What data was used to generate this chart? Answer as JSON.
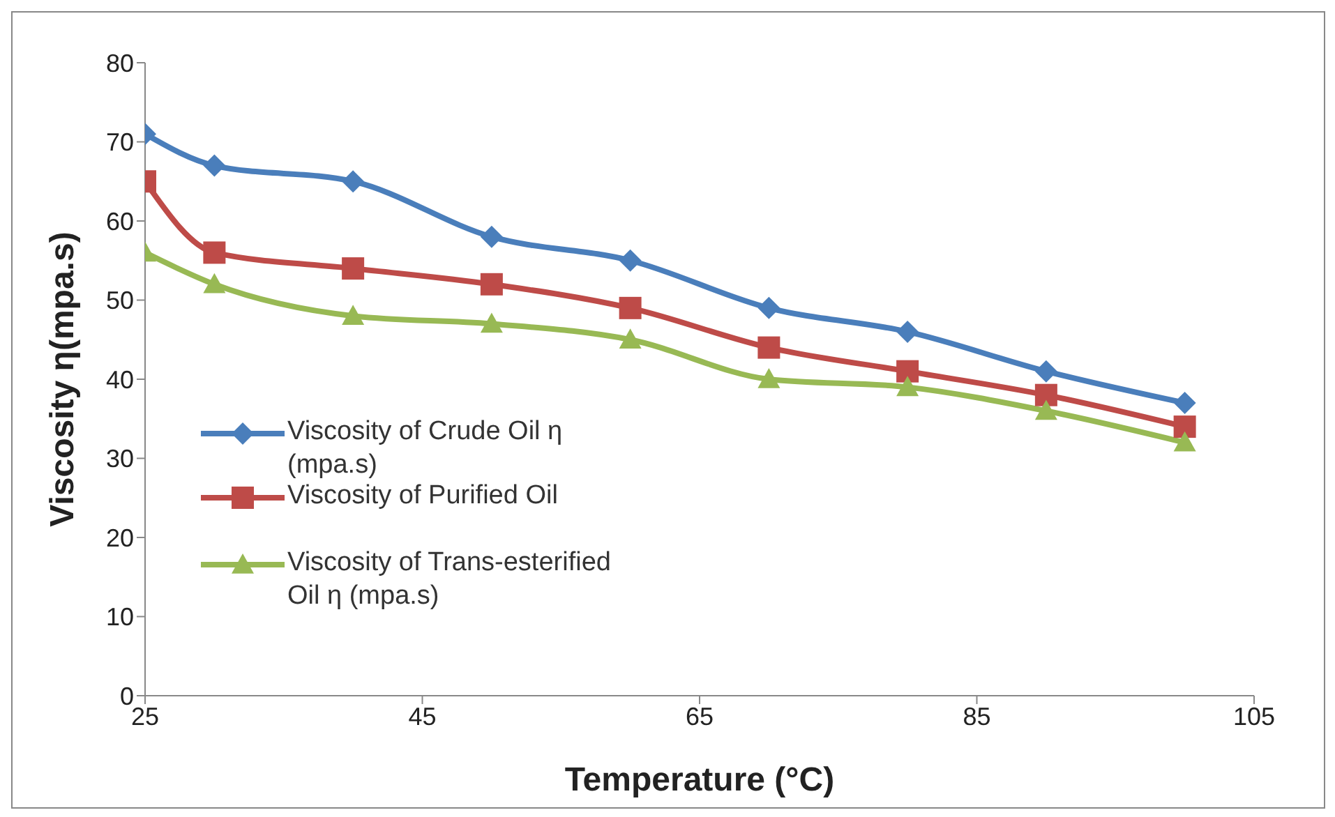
{
  "chart_data": {
    "type": "line",
    "xlabel": "Temperature (°C)",
    "ylabel": "Viscosity η(mpa.s)",
    "x": [
      25,
      30,
      40,
      50,
      60,
      70,
      80,
      90,
      100
    ],
    "series": [
      {
        "name": "Viscosity of Crude Oil η (mpa.s)",
        "color": "#4a7ebb",
        "marker": "diamond",
        "values": [
          71,
          67,
          65,
          58,
          55,
          49,
          46,
          41,
          37
        ]
      },
      {
        "name": "Viscosity of Purified Oil",
        "color": "#be4b48",
        "marker": "square",
        "values": [
          65,
          56,
          54,
          52,
          49,
          44,
          41,
          38,
          34
        ]
      },
      {
        "name": "Viscosity of Trans-esterified Oil η (mpa.s)",
        "color": "#98b954",
        "marker": "triangle",
        "values": [
          56,
          52,
          48,
          47,
          45,
          40,
          39,
          36,
          32
        ]
      }
    ],
    "xlim": [
      25,
      105
    ],
    "xticks": [
      25,
      45,
      65,
      85,
      105
    ],
    "ylim": [
      0,
      80
    ],
    "yticks": [
      0,
      10,
      20,
      30,
      40,
      50,
      60,
      70,
      80
    ],
    "grid": false,
    "legend": "left",
    "line_style": "solid"
  }
}
